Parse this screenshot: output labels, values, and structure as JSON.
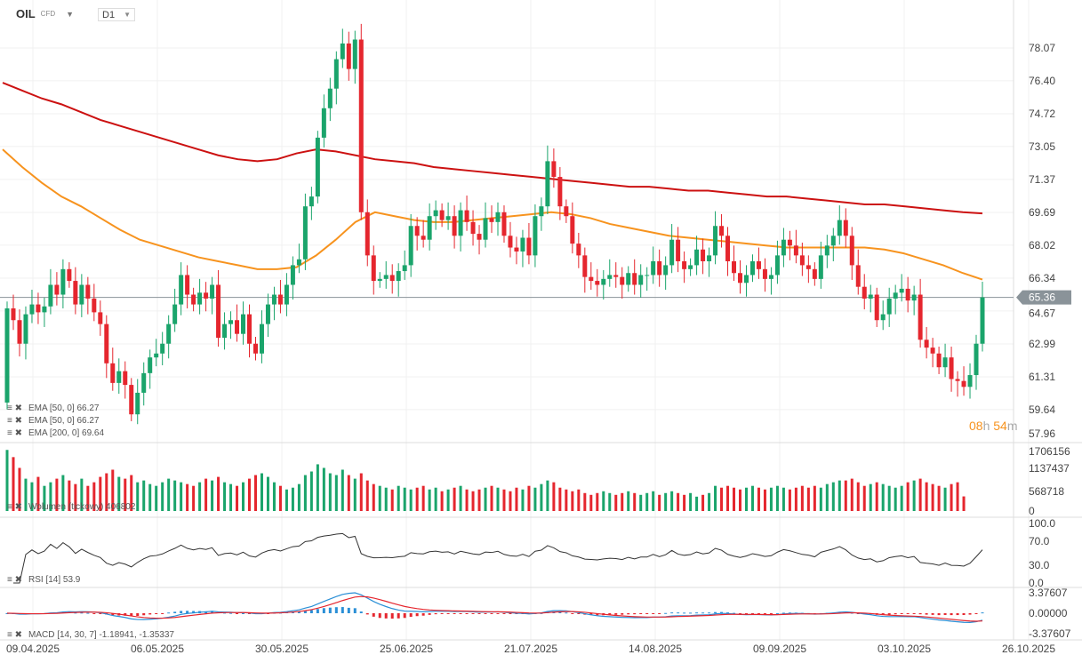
{
  "header": {
    "symbol": "OIL",
    "instrument_type": "CFD",
    "timeframe": "D1"
  },
  "timer": {
    "hours": "08",
    "h": "h",
    "minutes": "54",
    "m": "m"
  },
  "colors": {
    "up": "#1aa46b",
    "down": "#e5262e",
    "ema50": "#f7931e",
    "ema200": "#cc1111",
    "rsi": "#333333",
    "macd": "#2a8fd6",
    "signal": "#e5262e",
    "price_tag": "#8a9399"
  },
  "legends": {
    "ema1": "EMA [50, 0] 66.27",
    "ema2": "EMA [50, 0] 66.27",
    "ema3": "EMA [200, 0] 69.64",
    "volume": "Wolumen (tickowy) 406802",
    "rsi": "RSI [14] 53.9",
    "macd": "MACD [14, 30, 7] -1.18941, -1.35337"
  },
  "chart_data": {
    "type": "candlestick",
    "last_price": "65.36",
    "price_ticks": [
      "78.07",
      "76.40",
      "74.72",
      "73.05",
      "71.37",
      "69.69",
      "68.02",
      "66.34",
      "64.67",
      "62.99",
      "61.31",
      "59.64",
      "57.96"
    ],
    "ylim": [
      57.96,
      78.07
    ],
    "x_ticks": [
      "09.04.2025",
      "06.05.2025",
      "30.05.2025",
      "25.06.2025",
      "21.07.2025",
      "14.08.2025",
      "09.09.2025",
      "03.10.2025",
      "26.10.2025"
    ],
    "first_open": 60.0,
    "closes": [
      64.8,
      64.2,
      63.0,
      64.5,
      65.0,
      64.6,
      64.9,
      66.0,
      65.5,
      66.8,
      66.2,
      65.0,
      66.0,
      65.3,
      64.6,
      64.0,
      62.0,
      61.0,
      61.6,
      60.9,
      59.4,
      60.5,
      61.5,
      62.3,
      62.5,
      63.0,
      64.0,
      65.0,
      66.5,
      65.5,
      65.0,
      65.6,
      65.3,
      66.0,
      63.3,
      64.0,
      64.2,
      63.5,
      64.5,
      63.0,
      62.5,
      64.0,
      65.0,
      65.5,
      65.0,
      66.0,
      67.0,
      67.3,
      70.0,
      70.5,
      73.5,
      75.0,
      76.0,
      77.5,
      78.3,
      77.0,
      78.5,
      69.7,
      67.5,
      66.2,
      66.3,
      66.5,
      66.2,
      66.7,
      67.0,
      69.0,
      68.5,
      68.3,
      69.5,
      69.8,
      69.3,
      69.5,
      68.5,
      69.8,
      69.2,
      68.6,
      68.3,
      69.4,
      69.2,
      69.7,
      68.5,
      67.9,
      67.7,
      68.4,
      67.5,
      69.5,
      70.0,
      72.3,
      71.5,
      70.0,
      69.5,
      68.1,
      67.5,
      66.4,
      66.2,
      66.0,
      66.3,
      66.5,
      66.4,
      66.0,
      66.6,
      66.0,
      66.5,
      66.5,
      67.2,
      66.5,
      67.0,
      68.3,
      67.2,
      66.8,
      67.0,
      67.8,
      67.2,
      67.5,
      69.0,
      68.5,
      67.2,
      66.6,
      66.1,
      66.5,
      67.2,
      66.8,
      66.3,
      66.5,
      67.5,
      68.3,
      68.0,
      67.5,
      67.0,
      66.8,
      66.3,
      67.5,
      68.0,
      68.5,
      69.3,
      68.5,
      67.0,
      65.9,
      65.3,
      65.5,
      64.2,
      64.5,
      65.3,
      65.6,
      65.8,
      65.2,
      65.5,
      63.2,
      62.8,
      62.5,
      61.8,
      62.3,
      61.2,
      61.1,
      60.8,
      61.4,
      63.0,
      65.36
    ],
    "ema50_sampled": [
      72.9,
      72.0,
      71.2,
      70.5,
      70.0,
      69.4,
      68.8,
      68.3,
      68.0,
      67.7,
      67.4,
      67.2,
      67.0,
      66.8,
      66.8,
      66.9,
      67.5,
      68.3,
      69.2,
      69.7,
      69.5,
      69.3,
      69.2,
      69.2,
      69.3,
      69.4,
      69.5,
      69.6,
      69.7,
      69.6,
      69.4,
      69.1,
      68.9,
      68.7,
      68.5,
      68.4,
      68.3,
      68.2,
      68.1,
      68.0,
      67.9,
      67.9,
      67.9,
      67.9,
      67.9,
      67.8,
      67.6,
      67.3,
      67.0,
      66.6,
      66.27
    ],
    "ema200_sampled": [
      76.3,
      75.9,
      75.5,
      75.2,
      74.8,
      74.4,
      74.1,
      73.8,
      73.5,
      73.2,
      72.9,
      72.6,
      72.4,
      72.3,
      72.4,
      72.7,
      72.9,
      72.8,
      72.6,
      72.4,
      72.3,
      72.2,
      72.0,
      71.9,
      71.8,
      71.7,
      71.6,
      71.5,
      71.4,
      71.3,
      71.2,
      71.1,
      71.0,
      71.0,
      70.9,
      70.8,
      70.8,
      70.7,
      70.6,
      70.5,
      70.5,
      70.4,
      70.3,
      70.2,
      70.1,
      70.1,
      70.0,
      69.9,
      69.8,
      69.7,
      69.64
    ],
    "volume_ticks": [
      "1706156",
      "1137437",
      "568718",
      "0"
    ],
    "volume_max": 1706156,
    "volume": [
      1700000,
      1500000,
      1200000,
      900000,
      800000,
      950000,
      700000,
      800000,
      900000,
      1000000,
      850000,
      750000,
      900000,
      700000,
      800000,
      950000,
      1050000,
      1150000,
      950000,
      900000,
      1000000,
      800000,
      850000,
      750000,
      700000,
      800000,
      900000,
      850000,
      800000,
      750000,
      700000,
      800000,
      900000,
      850000,
      950000,
      800000,
      750000,
      700000,
      800000,
      900000,
      1000000,
      1050000,
      950000,
      800000,
      700000,
      600000,
      650000,
      750000,
      1000000,
      1100000,
      1300000,
      1200000,
      1050000,
      1000000,
      1150000,
      1000000,
      900000,
      1050000,
      850000,
      750000,
      700000,
      650000,
      600000,
      700000,
      650000,
      600000,
      650000,
      700000,
      600000,
      650000,
      550000,
      600000,
      650000,
      700000,
      600000,
      550000,
      600000,
      650000,
      700000,
      650000,
      600000,
      550000,
      650000,
      600000,
      700000,
      650000,
      750000,
      850000,
      800000,
      650000,
      600000,
      550000,
      600000,
      500000,
      450000,
      500000,
      550000,
      500000,
      450000,
      500000,
      550000,
      500000,
      450000,
      500000,
      550000,
      450000,
      500000,
      550000,
      500000,
      450000,
      500000,
      400000,
      450000,
      500000,
      700000,
      650000,
      700000,
      650000,
      600000,
      650000,
      700000,
      650000,
      600000,
      650000,
      700000,
      650000,
      600000,
      650000,
      700000,
      650000,
      700000,
      650000,
      750000,
      800000,
      850000,
      850000,
      900000,
      800000,
      700000,
      750000,
      800000,
      750000,
      700000,
      650000,
      700000,
      800000,
      850000,
      900000,
      800000,
      750000,
      700000,
      650000,
      750000,
      800000,
      406802
    ],
    "rsi_ticks": [
      "100.0",
      "70.0",
      "30.0",
      "0.0"
    ],
    "macd_ticks": [
      "3.37607",
      "0.00000",
      "-3.37607"
    ]
  }
}
